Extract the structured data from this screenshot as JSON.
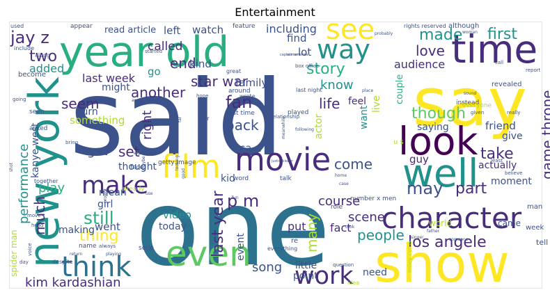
{
  "title": "Entertainment",
  "palette": {
    "purple": "#440154",
    "violet": "#472d7b",
    "indigo": "#3b528b",
    "blue": "#2c728e",
    "teal": "#21918c",
    "green": "#28ae80",
    "lime": "#5ec962",
    "yellow": "#addc30",
    "gold": "#fde725"
  },
  "words": [
    {
      "text": "said",
      "size": 150,
      "color": "indigo"
    },
    {
      "text": "one",
      "size": 150,
      "color": "blue"
    },
    {
      "text": "say",
      "size": 95,
      "color": "gold"
    },
    {
      "text": "show",
      "size": 75,
      "color": "gold"
    },
    {
      "text": "year old",
      "size": 60,
      "color": "green"
    },
    {
      "text": "time",
      "size": 55,
      "color": "violet"
    },
    {
      "text": "new york",
      "size": 60,
      "color": "teal"
    },
    {
      "text": "look",
      "size": 55,
      "color": "purple"
    },
    {
      "text": "well",
      "size": 55,
      "color": "teal"
    },
    {
      "text": "even",
      "size": 50,
      "color": "lime"
    },
    {
      "text": "movie",
      "size": 45,
      "color": "violet"
    },
    {
      "text": "film",
      "size": 45,
      "color": "gold"
    },
    {
      "text": "character",
      "size": 42,
      "color": "violet"
    },
    {
      "text": "think",
      "size": 40,
      "color": "blue"
    },
    {
      "text": "work",
      "size": 35,
      "color": "violet"
    },
    {
      "text": "make",
      "size": 35,
      "color": "violet"
    },
    {
      "text": "see",
      "size": 40,
      "color": "gold"
    },
    {
      "text": "way",
      "size": 38,
      "color": "teal"
    },
    {
      "text": "made",
      "size": 22,
      "color": "teal"
    },
    {
      "text": "first",
      "size": 22,
      "color": "teal"
    },
    {
      "text": "love",
      "size": 20,
      "color": "violet"
    },
    {
      "text": "audience",
      "size": 16,
      "color": "violet"
    },
    {
      "text": "jay z",
      "size": 24,
      "color": "violet"
    },
    {
      "text": "two",
      "size": 22,
      "color": "violet"
    },
    {
      "text": "added",
      "size": 16,
      "color": "teal"
    },
    {
      "text": "last week",
      "size": 16,
      "color": "violet"
    },
    {
      "text": "star war",
      "size": 20,
      "color": "violet"
    },
    {
      "text": "story",
      "size": 22,
      "color": "green"
    },
    {
      "text": "end",
      "size": 20,
      "color": "violet"
    },
    {
      "text": "called",
      "size": 17,
      "color": "violet"
    },
    {
      "text": "kind",
      "size": 15,
      "color": "indigo"
    },
    {
      "text": "go",
      "size": 15,
      "color": "teal"
    },
    {
      "text": "left",
      "size": 15,
      "color": "indigo"
    },
    {
      "text": "watch",
      "size": 15,
      "color": "indigo"
    },
    {
      "text": "including",
      "size": 16,
      "color": "indigo"
    },
    {
      "text": "find",
      "size": 15,
      "color": "indigo"
    },
    {
      "text": "lot",
      "size": 15,
      "color": "indigo"
    },
    {
      "text": "read article",
      "size": 13,
      "color": "indigo"
    },
    {
      "text": "know",
      "size": 18,
      "color": "teal"
    },
    {
      "text": "life",
      "size": 20,
      "color": "violet"
    },
    {
      "text": "fan",
      "size": 24,
      "color": "violet"
    },
    {
      "text": "family",
      "size": 15,
      "color": "indigo"
    },
    {
      "text": "another",
      "size": 20,
      "color": "violet"
    },
    {
      "text": "seem",
      "size": 20,
      "color": "violet"
    },
    {
      "text": "might",
      "size": 14,
      "color": "indigo"
    },
    {
      "text": "back",
      "size": 20,
      "color": "indigo"
    },
    {
      "text": "though",
      "size": 22,
      "color": "lime"
    },
    {
      "text": "game throne",
      "size": 20,
      "color": "violet"
    },
    {
      "text": "friend",
      "size": 15,
      "color": "indigo"
    },
    {
      "text": "saying",
      "size": 14,
      "color": "indigo"
    },
    {
      "text": "give",
      "size": 14,
      "color": "indigo"
    },
    {
      "text": "feel",
      "size": 14,
      "color": "violet"
    },
    {
      "text": "want",
      "size": 14,
      "color": "teal"
    },
    {
      "text": "live",
      "size": 14,
      "color": "yellow"
    },
    {
      "text": "couple",
      "size": 13,
      "color": "green"
    },
    {
      "text": "take",
      "size": 22,
      "color": "violet"
    },
    {
      "text": "performance",
      "size": 18,
      "color": "teal"
    },
    {
      "text": "kanye west",
      "size": 14,
      "color": "indigo"
    },
    {
      "text": "something",
      "size": 15,
      "color": "yellow"
    },
    {
      "text": "turn",
      "size": 14,
      "color": "indigo"
    },
    {
      "text": "got",
      "size": 18,
      "color": "indigo"
    },
    {
      "text": "set",
      "size": 20,
      "color": "violet"
    },
    {
      "text": "right",
      "size": 18,
      "color": "violet"
    },
    {
      "text": "actor",
      "size": 14,
      "color": "yellow"
    },
    {
      "text": "ca n't",
      "size": 15,
      "color": "indigo"
    },
    {
      "text": "play",
      "size": 18,
      "color": "green"
    },
    {
      "text": "thought",
      "size": 14,
      "color": "indigo"
    },
    {
      "text": "come",
      "size": 20,
      "color": "indigo"
    },
    {
      "text": "guy",
      "size": 15,
      "color": "violet"
    },
    {
      "text": "actually",
      "size": 14,
      "color": "violet"
    },
    {
      "text": "moment",
      "size": 14,
      "color": "indigo"
    },
    {
      "text": "part",
      "size": 22,
      "color": "violet"
    },
    {
      "text": "may",
      "size": 24,
      "color": "indigo"
    },
    {
      "text": "scene",
      "size": 18,
      "color": "violet"
    },
    {
      "text": "course",
      "size": 18,
      "color": "violet"
    },
    {
      "text": "still",
      "size": 25,
      "color": "green"
    },
    {
      "text": "much",
      "size": 20,
      "color": "violet"
    },
    {
      "text": "mean",
      "size": 14,
      "color": "indigo"
    },
    {
      "text": "girl",
      "size": 14,
      "color": "indigo"
    },
    {
      "text": "thing",
      "size": 22,
      "color": "gold"
    },
    {
      "text": "kid",
      "size": 14,
      "color": "indigo"
    },
    {
      "text": "p m",
      "size": 24,
      "color": "violet"
    },
    {
      "text": "last year",
      "size": 22,
      "color": "violet"
    },
    {
      "text": "put",
      "size": 16,
      "color": "violet"
    },
    {
      "text": "fact",
      "size": 16,
      "color": "violet"
    },
    {
      "text": "many",
      "size": 20,
      "color": "yellow"
    },
    {
      "text": "los angele",
      "size": 22,
      "color": "violet"
    },
    {
      "text": "people",
      "size": 20,
      "color": "teal"
    },
    {
      "text": "video",
      "size": 15,
      "color": "teal"
    },
    {
      "text": "today",
      "size": 14,
      "color": "indigo"
    },
    {
      "text": "went",
      "size": 15,
      "color": "indigo"
    },
    {
      "text": "making",
      "size": 14,
      "color": "indigo"
    },
    {
      "text": "song",
      "size": 18,
      "color": "indigo"
    },
    {
      "text": "event",
      "size": 14,
      "color": "indigo"
    },
    {
      "text": "little",
      "size": 14,
      "color": "indigo"
    },
    {
      "text": "point",
      "size": 14,
      "color": "indigo"
    },
    {
      "text": "need",
      "size": 14,
      "color": "indigo"
    },
    {
      "text": "kim kardashian",
      "size": 18,
      "color": "violet"
    },
    {
      "text": "spider man",
      "size": 12,
      "color": "yellow"
    },
    {
      "text": "world",
      "size": 12,
      "color": "yellow"
    },
    {
      "text": "came",
      "size": 12,
      "color": "indigo"
    },
    {
      "text": "week",
      "size": 10,
      "color": "indigo"
    },
    {
      "text": "tell",
      "size": 11,
      "color": "indigo"
    },
    {
      "text": "man",
      "size": 10,
      "color": "indigo"
    },
    {
      "text": "miley cyrus",
      "size": 8,
      "color": "yellow"
    },
    {
      "text": "used",
      "size": 8,
      "color": "indigo"
    },
    {
      "text": "appear",
      "size": 9,
      "color": "indigo"
    },
    {
      "text": "feature",
      "size": 9,
      "color": "indigo"
    },
    {
      "text": "rights reserved",
      "size": 8,
      "color": "indigo"
    },
    {
      "text": "although",
      "size": 10,
      "color": "indigo"
    },
    {
      "text": "include",
      "size": 8,
      "color": "indigo"
    },
    {
      "text": "along",
      "size": 8,
      "color": "indigo"
    },
    {
      "text": "started",
      "size": 7,
      "color": "indigo"
    },
    {
      "text": "box office",
      "size": 7,
      "color": "indigo"
    },
    {
      "text": "last night",
      "size": 8,
      "color": "indigo"
    },
    {
      "text": "instead",
      "size": 9,
      "color": "indigo"
    },
    {
      "text": "everyone",
      "size": 9,
      "color": "yellow"
    },
    {
      "text": "revealed",
      "size": 10,
      "color": "indigo"
    },
    {
      "text": "report",
      "size": 7,
      "color": "indigo"
    },
    {
      "text": "become",
      "size": 10,
      "color": "indigo"
    },
    {
      "text": "great",
      "size": 8,
      "color": "indigo"
    },
    {
      "text": "around",
      "size": 9,
      "color": "indigo"
    },
    {
      "text": "wrote",
      "size": 8,
      "color": "indigo"
    },
    {
      "text": "first time",
      "size": 9,
      "color": "indigo"
    },
    {
      "text": "played",
      "size": 9,
      "color": "indigo"
    },
    {
      "text": "seen",
      "size": 9,
      "color": "indigo"
    },
    {
      "text": "asked",
      "size": 9,
      "color": "indigo"
    },
    {
      "text": "help",
      "size": 9,
      "color": "indigo"
    },
    {
      "text": "hope",
      "size": 7,
      "color": "indigo"
    },
    {
      "text": "star",
      "size": 8,
      "color": "indigo"
    },
    {
      "text": "bit",
      "size": 8,
      "color": "indigo"
    },
    {
      "text": "getty image",
      "size": 9,
      "color": "indigo"
    },
    {
      "text": "word",
      "size": 9,
      "color": "indigo"
    },
    {
      "text": "talk",
      "size": 9,
      "color": "indigo"
    },
    {
      "text": "face",
      "size": 9,
      "color": "indigo"
    },
    {
      "text": "together",
      "size": 8,
      "color": "indigo"
    },
    {
      "text": "already",
      "size": 9,
      "color": "yellow"
    },
    {
      "text": "number x men",
      "size": 9,
      "color": "indigo"
    },
    {
      "text": "role",
      "size": 9,
      "color": "indigo"
    },
    {
      "text": "re",
      "size": 10,
      "color": "indigo"
    },
    {
      "text": "name",
      "size": 9,
      "color": "indigo"
    },
    {
      "text": "serie",
      "size": 9,
      "color": "indigo"
    },
    {
      "text": "everything",
      "size": 8,
      "color": "indigo"
    },
    {
      "text": "question",
      "size": 7,
      "color": "indigo"
    },
    {
      "text": "idea",
      "size": 8,
      "color": "yellow"
    },
    {
      "text": "u s",
      "size": 10,
      "color": "yellow"
    },
    {
      "text": "voice",
      "size": 7,
      "color": "indigo"
    },
    {
      "text": "day",
      "size": 7,
      "color": "indigo"
    },
    {
      "text": "despite",
      "size": 8,
      "color": "indigo"
    },
    {
      "text": "head",
      "size": 7,
      "color": "indigo"
    },
    {
      "text": "move",
      "size": 7,
      "color": "indigo"
    },
    {
      "text": "bring",
      "size": 7,
      "color": "indigo"
    },
    {
      "text": "really",
      "size": 7,
      "color": "indigo"
    },
    {
      "text": "given",
      "size": 7,
      "color": "indigo"
    },
    {
      "text": "call",
      "size": 7,
      "color": "indigo"
    },
    {
      "text": "least",
      "size": 7,
      "color": "indigo"
    },
    {
      "text": "believe",
      "size": 7,
      "color": "indigo"
    },
    {
      "text": "woman",
      "size": 6,
      "color": "indigo"
    },
    {
      "text": "probably",
      "size": 6,
      "color": "indigo"
    },
    {
      "text": "sound",
      "size": 6,
      "color": "indigo"
    },
    {
      "text": "going",
      "size": 7,
      "color": "indigo"
    },
    {
      "text": "return",
      "size": 6,
      "color": "indigo"
    },
    {
      "text": "playing",
      "size": 6,
      "color": "indigo"
    },
    {
      "text": "project",
      "size": 6,
      "color": "indigo"
    },
    {
      "text": "maybe",
      "size": 6,
      "color": "indigo"
    },
    {
      "text": "good",
      "size": 6,
      "color": "indigo"
    },
    {
      "text": "use",
      "size": 6,
      "color": "indigo"
    },
    {
      "text": "experience",
      "size": 6,
      "color": "indigo"
    },
    {
      "text": "looking",
      "size": 6,
      "color": "indigo"
    },
    {
      "text": "far",
      "size": 6,
      "color": "indigo"
    },
    {
      "text": "always",
      "size": 7,
      "color": "indigo"
    },
    {
      "text": "singer",
      "size": 6,
      "color": "indigo"
    },
    {
      "text": "took",
      "size": 6,
      "color": "indigo"
    },
    {
      "text": "case",
      "size": 6,
      "color": "indigo"
    },
    {
      "text": "home",
      "size": 6,
      "color": "indigo"
    },
    {
      "text": "fun",
      "size": 6,
      "color": "indigo"
    },
    {
      "text": "father",
      "size": 6,
      "color": "indigo"
    },
    {
      "text": "someone",
      "size": 6,
      "color": "indigo"
    },
    {
      "text": "meanwhile",
      "size": 6,
      "color": "indigo"
    },
    {
      "text": "justin bieber",
      "size": 5,
      "color": "indigo"
    },
    {
      "text": "relationship",
      "size": 7,
      "color": "indigo"
    },
    {
      "text": "following",
      "size": 6,
      "color": "indigo"
    },
    {
      "text": "place",
      "size": 6,
      "color": "indigo"
    },
    {
      "text": "apparently",
      "size": 6,
      "color": "indigo"
    },
    {
      "text": "shot",
      "size": 6,
      "color": "indigo"
    },
    {
      "text": "captain america",
      "size": 5,
      "color": "indigo"
    },
    {
      "text": "women",
      "size": 5,
      "color": "indigo"
    },
    {
      "text": "start",
      "size": 6,
      "color": "indigo"
    },
    {
      "text": "getting",
      "size": 6,
      "color": "indigo"
    }
  ]
}
